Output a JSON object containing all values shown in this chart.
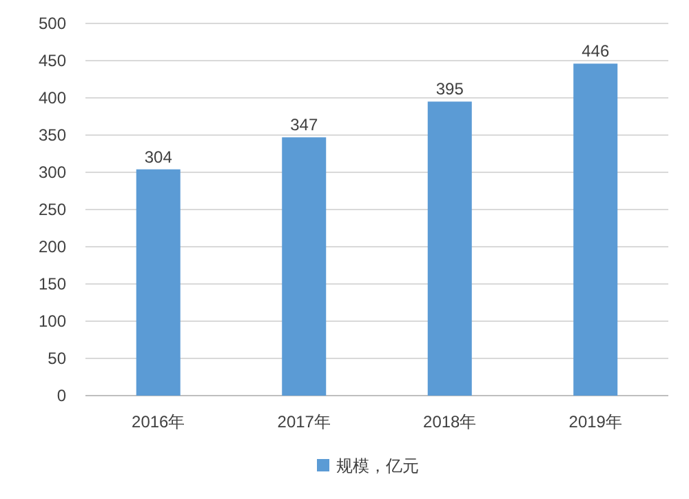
{
  "chart_data": {
    "type": "bar",
    "categories": [
      "2016年",
      "2017年",
      "2018年",
      "2019年"
    ],
    "series": [
      {
        "name": "规模，亿元",
        "color": "#5b9bd5",
        "values": [
          304,
          347,
          395,
          446
        ]
      }
    ],
    "ylim": [
      0,
      500
    ],
    "yticks": [
      0,
      50,
      100,
      150,
      200,
      250,
      300,
      350,
      400,
      450,
      500
    ],
    "grid": "y",
    "data_labels": true,
    "legend": "bottom"
  }
}
